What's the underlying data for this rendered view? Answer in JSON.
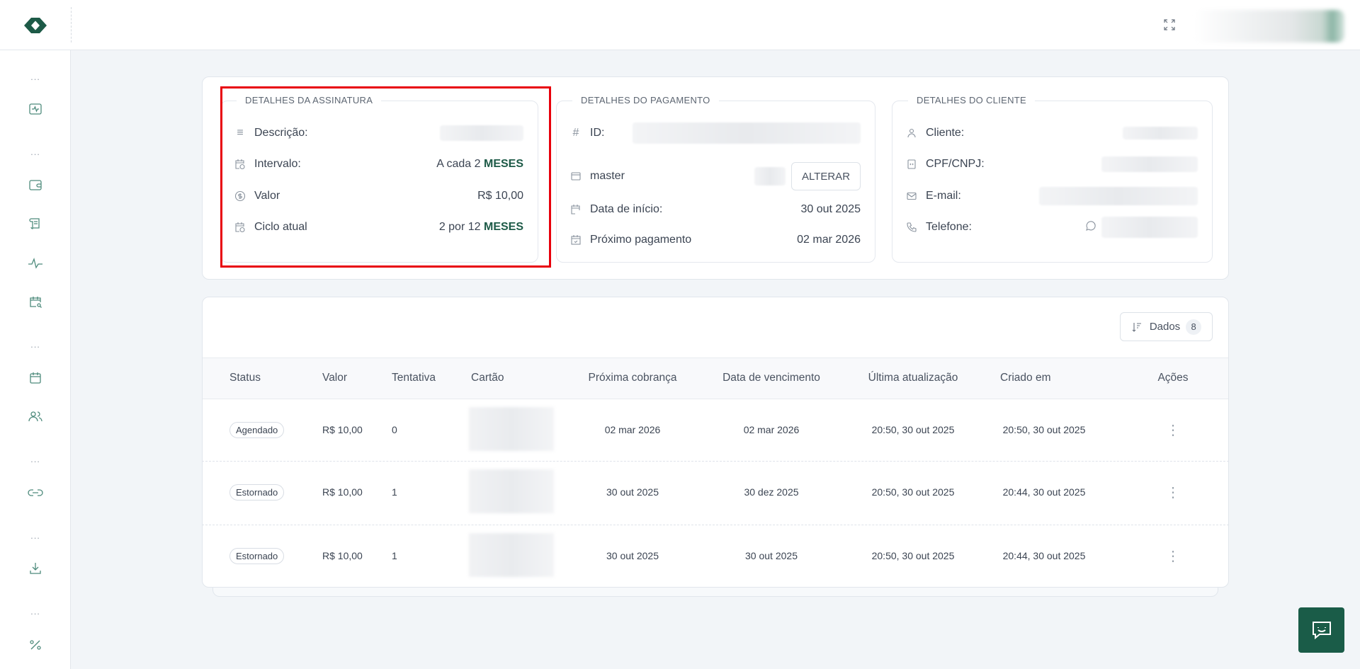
{
  "header": {
    "logo": "brand-logo",
    "fullscreen_icon": "fullscreen-icon",
    "user": "blurred-user-avatar"
  },
  "sidebar": {
    "items": [
      {
        "icon": "activity-box-icon"
      },
      {
        "icon": "wallet-icon"
      },
      {
        "icon": "receipt-scroll-icon"
      },
      {
        "icon": "pulse-icon"
      },
      {
        "icon": "calendar-search-icon"
      },
      {
        "icon": "calendar-icon"
      },
      {
        "icon": "users-icon"
      },
      {
        "icon": "link-icon"
      },
      {
        "icon": "download-icon"
      },
      {
        "icon": "percent-icon"
      }
    ],
    "dots": "..."
  },
  "subscription": {
    "title": "DETALHES DA ASSINATURA",
    "description_label": "Descrição:",
    "interval_label": "Intervalo:",
    "interval_value": "A cada 2",
    "interval_unit": "MESES",
    "value_label": "Valor",
    "value": "R$ 10,00",
    "cycle_label": "Ciclo atual",
    "cycle_value": "2 por 12",
    "cycle_unit": "MESES"
  },
  "payment": {
    "title": "DETALHES DO PAGAMENTO",
    "id_label": "ID:",
    "card_brand": "master",
    "change_button": "ALTERAR",
    "start_label": "Data de início:",
    "start_value": "30 out 2025",
    "next_label": "Próximo pagamento",
    "next_value": "02 mar 2026"
  },
  "client": {
    "title": "DETALHES DO CLIENTE",
    "client_label": "Cliente:",
    "doc_label": "CPF/CNPJ:",
    "email_label": "E-mail:",
    "phone_label": "Telefone:"
  },
  "table": {
    "dados_label": "Dados",
    "dados_count": "8",
    "columns": [
      "Status",
      "Valor",
      "Tentativa",
      "Cartão",
      "Próxima cobrança",
      "Data de vencimento",
      "Última atualização",
      "Criado em",
      "Ações"
    ],
    "rows": [
      {
        "status": "Agendado",
        "valor": "R$ 10,00",
        "tentativa": "0",
        "proxima": "02 mar 2026",
        "vencimento": "02 mar 2026",
        "atualizacao": "20:50, 30 out 2025",
        "criado": "20:50, 30 out 2025"
      },
      {
        "status": "Estornado",
        "valor": "R$ 10,00",
        "tentativa": "1",
        "proxima": "30 out 2025",
        "vencimento": "30 dez 2025",
        "atualizacao": "20:50, 30 out 2025",
        "criado": "20:44, 30 out 2025"
      },
      {
        "status": "Estornado",
        "valor": "R$ 10,00",
        "tentativa": "1",
        "proxima": "30 out 2025",
        "vencimento": "30 out 2025",
        "atualizacao": "20:50, 30 out 2025",
        "criado": "20:44, 30 out 2025"
      }
    ]
  },
  "colors": {
    "brand": "#1d5a47",
    "highlight": "#e8000b",
    "chat_button": "#1a5c48"
  }
}
